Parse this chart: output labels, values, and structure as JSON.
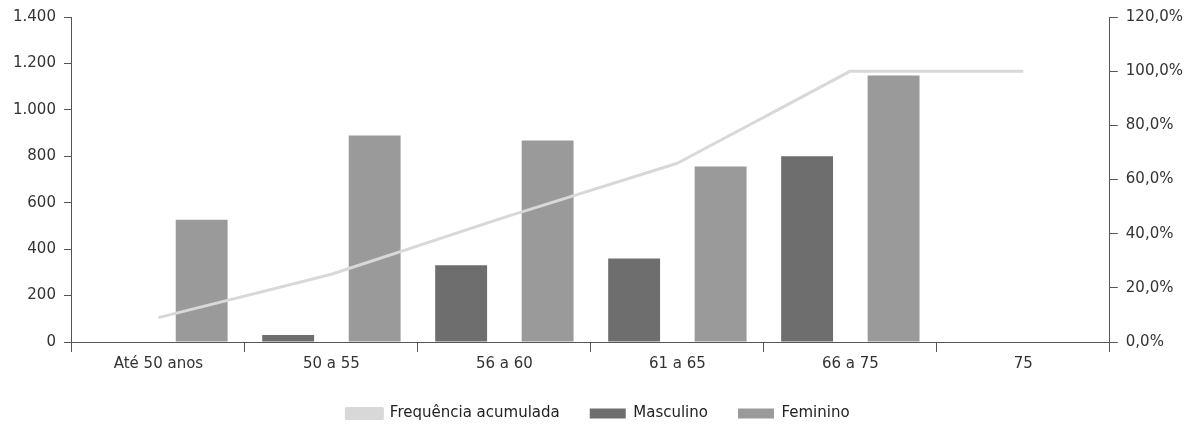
{
  "chart_data": {
    "type": "bar",
    "categories": [
      "Até 50 anos",
      "50 a 55",
      "56 a 60",
      "61 a 65",
      "66 a 75",
      "75"
    ],
    "series": [
      {
        "name": "Masculino",
        "color": "#6e6e6e",
        "values": [
          0,
          30,
          331,
          360,
          800,
          0
        ]
      },
      {
        "name": "Feminino",
        "color": "#9a9a9a",
        "values": [
          527,
          890,
          868,
          756,
          1148,
          0
        ]
      },
      {
        "name": "Frequência acumulada",
        "type": "line",
        "axis": "y2",
        "color": "#d8d8d8",
        "values": [
          9,
          25,
          46,
          66,
          100,
          100
        ]
      }
    ],
    "ylim": [
      0,
      1400
    ],
    "yticks": [
      {
        "value": 0,
        "label": "0"
      },
      {
        "value": 200,
        "label": "200"
      },
      {
        "value": 400,
        "label": "400"
      },
      {
        "value": 600,
        "label": "600"
      },
      {
        "value": 800,
        "label": "800"
      },
      {
        "value": 1000,
        "label": "1.000"
      },
      {
        "value": 1200,
        "label": "1.200"
      },
      {
        "value": 1400,
        "label": "1.400"
      }
    ],
    "y2lim": [
      0,
      120
    ],
    "y2ticks": [
      {
        "value": 0,
        "label": "0,0%"
      },
      {
        "value": 20,
        "label": "20,0%"
      },
      {
        "value": 40,
        "label": "40,0%"
      },
      {
        "value": 60,
        "label": "60,0%"
      },
      {
        "value": 80,
        "label": "80,0%"
      },
      {
        "value": 100,
        "label": "100,0%"
      },
      {
        "value": 120,
        "label": "120,0%"
      }
    ],
    "grid": false,
    "legend": "bottom",
    "marker": "none"
  }
}
